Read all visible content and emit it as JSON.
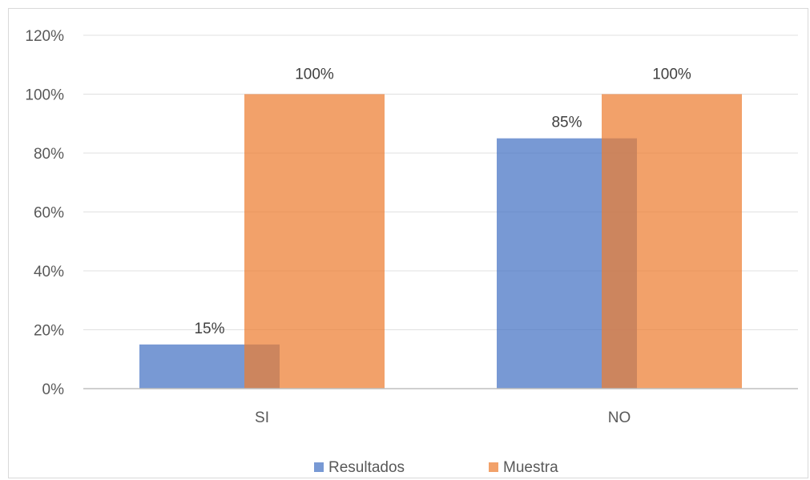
{
  "chart_data": {
    "type": "bar",
    "title": "",
    "xlabel": "",
    "ylabel": "",
    "categories": [
      "SI",
      "NO"
    ],
    "series": [
      {
        "name": "Resultados",
        "values": [
          15,
          85
        ],
        "labels": [
          "15%",
          "85%"
        ],
        "color": "#4472c4"
      },
      {
        "name": "Muestra",
        "values": [
          100,
          100
        ],
        "labels": [
          "100%",
          "100%"
        ],
        "color": "#ed7d31"
      }
    ],
    "ylim": [
      0,
      120
    ],
    "y_ticks": [
      0,
      20,
      40,
      60,
      80,
      100,
      120
    ],
    "y_tick_labels": [
      "0%",
      "20%",
      "40%",
      "60%",
      "80%",
      "100%",
      "120%"
    ],
    "bar_overlap": true,
    "grid": true,
    "legend": "bottom"
  }
}
